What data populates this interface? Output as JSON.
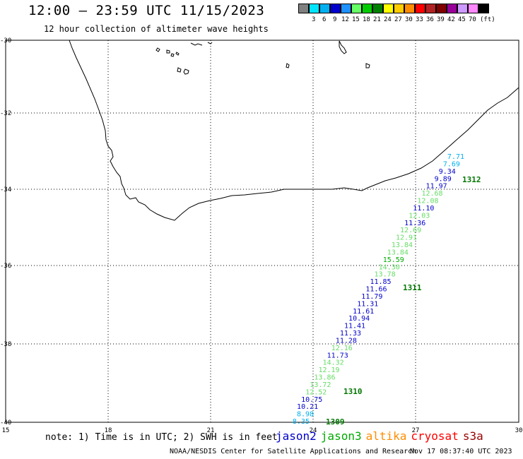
{
  "header": {
    "title": "12:00 – 23:59 UTC 11/15/2023",
    "subtitle": "12 hour collection of altimeter wave heights"
  },
  "legend": {
    "unit": "(ft)",
    "bins": [
      {
        "label": "",
        "color": "#808080"
      },
      {
        "label": "3",
        "color": "#00e5ff"
      },
      {
        "label": "6",
        "color": "#00b0f0"
      },
      {
        "label": "9",
        "color": "#0000cd"
      },
      {
        "label": "12",
        "color": "#1e90ff"
      },
      {
        "label": "15",
        "color": "#66ff66"
      },
      {
        "label": "18",
        "color": "#00cc00"
      },
      {
        "label": "21",
        "color": "#008000"
      },
      {
        "label": "24",
        "color": "#ffff00"
      },
      {
        "label": "27",
        "color": "#ffcc00"
      },
      {
        "label": "30",
        "color": "#ff8c00"
      },
      {
        "label": "33",
        "color": "#ff0000"
      },
      {
        "label": "36",
        "color": "#b22222"
      },
      {
        "label": "39",
        "color": "#800000"
      },
      {
        "label": "42",
        "color": "#990099"
      },
      {
        "label": "45",
        "color": "#cc99ff"
      },
      {
        "label": "70",
        "color": "#ff88ff"
      },
      {
        "label": "",
        "color": "#000000"
      }
    ]
  },
  "axes": {
    "latitudes": [
      "-30",
      "-32",
      "-34",
      "-36",
      "-38",
      "-40"
    ],
    "longitudes": [
      "15",
      "18",
      "21",
      "24",
      "27",
      "30"
    ]
  },
  "passes": [
    {
      "label": "1312"
    },
    {
      "label": "1311"
    },
    {
      "label": "1310"
    },
    {
      "label": "1309"
    }
  ],
  "readings": [
    {
      "value": "7.71",
      "color": "#00b0f0"
    },
    {
      "value": "7.69",
      "color": "#00b0f0"
    },
    {
      "value": "9.34",
      "color": "#0000cd"
    },
    {
      "value": "9.89",
      "color": "#0000cd"
    },
    {
      "value": "11.97",
      "color": "#0000cd"
    },
    {
      "value": "12.68",
      "color": "#66dd66"
    },
    {
      "value": "12.08",
      "color": "#66dd66"
    },
    {
      "value": "11.10",
      "color": "#0000cd"
    },
    {
      "value": "12.03",
      "color": "#66dd66"
    },
    {
      "value": "11.36",
      "color": "#0000cd"
    },
    {
      "value": "12.69",
      "color": "#66dd66"
    },
    {
      "value": "12.91",
      "color": "#66dd66"
    },
    {
      "value": "13.84",
      "color": "#66dd66"
    },
    {
      "value": "13.84",
      "color": "#66dd66"
    },
    {
      "value": "15.59",
      "color": "#00aa00"
    },
    {
      "value": "14.30",
      "color": "#66dd66"
    },
    {
      "value": "13.78",
      "color": "#66dd66"
    },
    {
      "value": "11.85",
      "color": "#0000cd"
    },
    {
      "value": "11.66",
      "color": "#0000cd"
    },
    {
      "value": "11.79",
      "color": "#0000cd"
    },
    {
      "value": "11.31",
      "color": "#0000cd"
    },
    {
      "value": "11.61",
      "color": "#0000cd"
    },
    {
      "value": "10.94",
      "color": "#0000cd"
    },
    {
      "value": "11.41",
      "color": "#0000cd"
    },
    {
      "value": "11.33",
      "color": "#0000cd"
    },
    {
      "value": "11.28",
      "color": "#0000cd"
    },
    {
      "value": "12.16",
      "color": "#66dd66"
    },
    {
      "value": "11.73",
      "color": "#0000cd"
    },
    {
      "value": "14.32",
      "color": "#66dd66"
    },
    {
      "value": "12.19",
      "color": "#66dd66"
    },
    {
      "value": "13.86",
      "color": "#66dd66"
    },
    {
      "value": "13.72",
      "color": "#66dd66"
    },
    {
      "value": "12.52",
      "color": "#66dd66"
    },
    {
      "value": "10.75",
      "color": "#0000cd"
    },
    {
      "value": "10.21",
      "color": "#0000cd"
    },
    {
      "value": "8.98",
      "color": "#00b0f0"
    },
    {
      "value": "8.35",
      "color": "#00b0f0"
    }
  ],
  "note": "note: 1) Time is in UTC; 2) SWH is in feet",
  "satellites": [
    {
      "name": "jason2",
      "color": "#0000cd"
    },
    {
      "name": "jason3",
      "color": "#00aa00"
    },
    {
      "name": "altika",
      "color": "#ff8c00"
    },
    {
      "name": "cryosat",
      "color": "#ff0000"
    },
    {
      "name": "s3a",
      "color": "#990000"
    }
  ],
  "footer": {
    "credit": "NOAA/NESDIS Center for Satellite Applications and Research",
    "timestamp": "Nov 17 08:37:40 UTC 2023"
  }
}
